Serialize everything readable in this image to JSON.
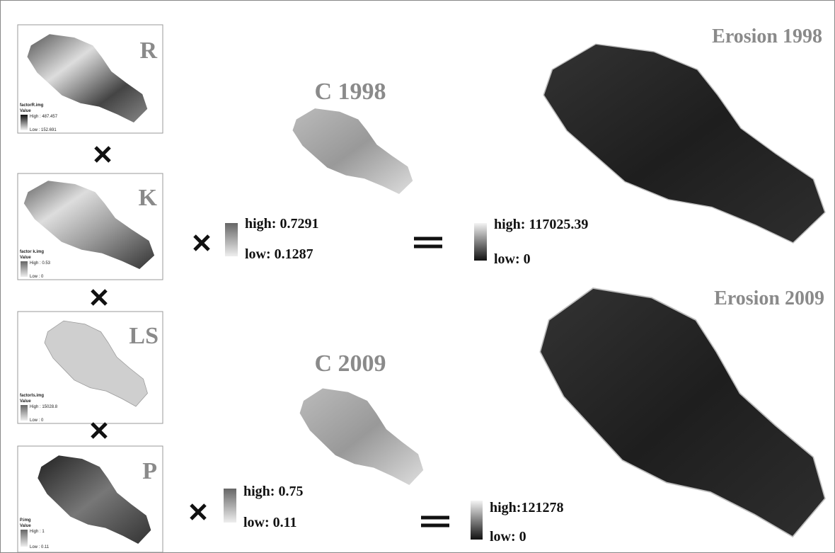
{
  "factors": [
    {
      "title": "R",
      "legend": {
        "file": "factorR.img",
        "field": "Value",
        "high": "High : 487.457",
        "low": "Low : 152.691"
      }
    },
    {
      "title": "K",
      "legend": {
        "file": "factor k.img",
        "field": "Value",
        "high": "High : 0.53",
        "low": "Low : 0"
      }
    },
    {
      "title": "LS",
      "legend": {
        "file": "factorls.img",
        "field": "Value",
        "high": "High : 15028.8",
        "low": "Low : 0"
      }
    },
    {
      "title": "P",
      "legend": {
        "file": "P.img",
        "field": "Value",
        "high": "High : 1",
        "low": "Low : 0.11"
      }
    }
  ],
  "c_maps": [
    {
      "title": "C 1998",
      "high": "high: 0.7291",
      "low": "low: 0.1287"
    },
    {
      "title": "C 2009",
      "high": "high: 0.75",
      "low": "low: 0.11"
    }
  ],
  "erosion_maps": [
    {
      "title": "Erosion 1998",
      "high": "high: 117025.39",
      "low": "low: 0"
    },
    {
      "title": "Erosion 2009",
      "high": "high:121278",
      "low": "low: 0"
    }
  ]
}
